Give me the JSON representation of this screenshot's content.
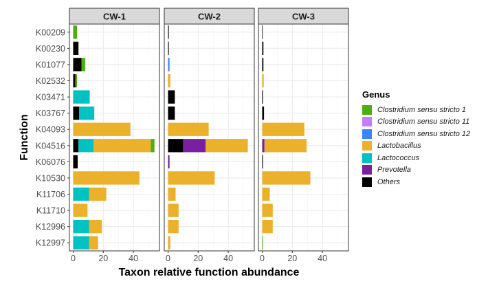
{
  "chart_data": {
    "type": "bar",
    "orientation": "horizontal",
    "stacked": true,
    "xlabel": "Taxon relative function abundance",
    "ylabel": "Function",
    "xlim": [
      -2,
      55
    ],
    "xticks": [
      0,
      20,
      40
    ],
    "grid": true,
    "legend_position": "right",
    "categories": [
      "K00209",
      "K00230",
      "K01077",
      "K02532",
      "K03471",
      "K03767",
      "K04093",
      "K04516",
      "K06076",
      "K10530",
      "K11706",
      "K11710",
      "K12996",
      "K12997"
    ],
    "genera": [
      {
        "name": "Clostridium sensu stricto 1",
        "color": "#4DAF0F"
      },
      {
        "name": "Clostridium sensu stricto 11",
        "color": "#C77CFF"
      },
      {
        "name": "Clostridium sensu stricto 12",
        "color": "#3A86FF"
      },
      {
        "name": "Lactobacillus",
        "color": "#EBB12B"
      },
      {
        "name": "Lactococcus",
        "color": "#00C2C2"
      },
      {
        "name": "Prevotella",
        "color": "#7B1FA2"
      },
      {
        "name": "Others",
        "color": "#000000"
      }
    ],
    "stack_order": [
      "Others",
      "Prevotella",
      "Lactococcus",
      "Lactobacillus",
      "Clostridium sensu stricto 12",
      "Clostridium sensu stricto 11",
      "Clostridium sensu stricto 1"
    ],
    "panels": [
      {
        "title": "CW-1",
        "values": {
          "K00209": {
            "Clostridium sensu stricto 1": 2.5
          },
          "K00230": {
            "Others": 3.5
          },
          "K01077": {
            "Others": 5.5,
            "Clostridium sensu stricto 1": 2.5
          },
          "K02532": {
            "Others": 1.5,
            "Clostridium sensu stricto 1": 1.0
          },
          "K03471": {
            "Lactococcus": 11
          },
          "K03767": {
            "Others": 4,
            "Lactococcus": 10
          },
          "K04093": {
            "Lactobacillus": 38
          },
          "K04516": {
            "Others": 3.5,
            "Lactococcus": 10,
            "Lactobacillus": 38,
            "Clostridium sensu stricto 1": 2.5
          },
          "K06076": {
            "Others": 3
          },
          "K10530": {
            "Lactobacillus": 44
          },
          "K11706": {
            "Lactococcus": 10.5,
            "Lactobacillus": 11.5
          },
          "K11710": {
            "Lactobacillus": 9.5
          },
          "K12996": {
            "Lactococcus": 10.5,
            "Lactobacillus": 8.5
          },
          "K12997": {
            "Lactococcus": 10.5,
            "Lactobacillus": 6
          }
        }
      },
      {
        "title": "CW-2",
        "values": {
          "K00209": {
            "Others": 0.5
          },
          "K00230": {
            "Others": 0.5
          },
          "K01077": {
            "Clostridium sensu stricto 12": 1
          },
          "K02532": {
            "Lactobacillus": 1.5
          },
          "K03471": {
            "Others": 4.5
          },
          "K03767": {
            "Others": 4.5
          },
          "K04093": {
            "Lactobacillus": 27
          },
          "K04516": {
            "Others": 10,
            "Prevotella": 15,
            "Lactobacillus": 28
          },
          "K06076": {
            "Prevotella": 1
          },
          "K10530": {
            "Lactobacillus": 31
          },
          "K11706": {
            "Lactobacillus": 5
          },
          "K11710": {
            "Lactobacillus": 7
          },
          "K12996": {
            "Lactobacillus": 7
          },
          "K12997": {
            "Lactobacillus": 1.5
          }
        }
      },
      {
        "title": "CW-3",
        "values": {
          "K00209": {
            "Others": 0.3
          },
          "K00230": {
            "Others": 0.8
          },
          "K01077": {
            "Others": 0.8
          },
          "K02532": {
            "Lactobacillus": 1
          },
          "K03471": {
            "Others": 0.5
          },
          "K03767": {
            "Others": 1.2
          },
          "K04093": {
            "Lactobacillus": 28
          },
          "K04516": {
            "Prevotella": 1.5,
            "Lactobacillus": 28
          },
          "K06076": {
            "Others": 0.5
          },
          "K10530": {
            "Lactobacillus": 32
          },
          "K11706": {
            "Lactobacillus": 5
          },
          "K11710": {
            "Lactobacillus": 7
          },
          "K12996": {
            "Lactobacillus": 7
          },
          "K12997": {
            "Clostridium sensu stricto 1": 0.5
          }
        }
      }
    ]
  },
  "legend": {
    "title": "Genus",
    "items": [
      {
        "label": "Clostridium sensu stricto 1",
        "color": "#4DAF0F"
      },
      {
        "label": "Clostridium sensu stricto 11",
        "color": "#C77CFF"
      },
      {
        "label": "Clostridium sensu stricto 12",
        "color": "#3A86FF"
      },
      {
        "label": "Lactobacillus",
        "color": "#EBB12B"
      },
      {
        "label": "Lactococcus",
        "color": "#00C2C2"
      },
      {
        "label": "Prevotella",
        "color": "#7B1FA2"
      },
      {
        "label": "Others",
        "color": "#000000"
      }
    ]
  }
}
